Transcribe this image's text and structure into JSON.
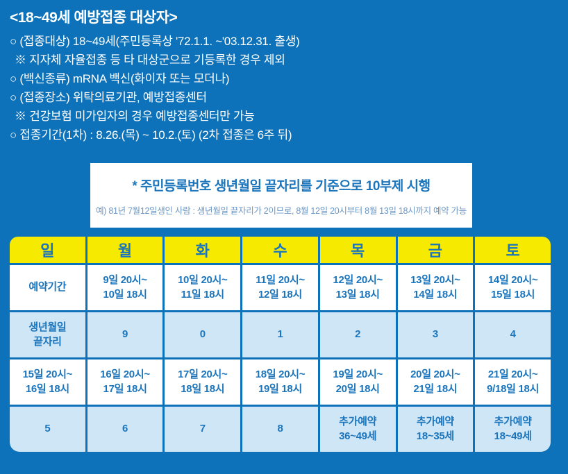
{
  "colors": {
    "background": "#0d72b9",
    "header-yellow": "#f6ea00",
    "cell-light-blue": "#cfe6f7",
    "cell-white": "#ffffff",
    "text-blue": "#1b75bc",
    "text-dark": "#2c5f7e",
    "text-red": "#e8312b",
    "text-white": "#ffffff",
    "notice-subtitle-blue": "#6b97c5"
  },
  "header_section": {
    "title": "<18~49세 예방접종 대상자>",
    "lines": [
      "○ (접종대상) 18~49세(주민등록상 '72.1.1. ~'03.12.31. 출생)",
      "※ 지자체 자율접종 등 타 대상군으로 기등록한 경우 제외",
      "○ (백신종류) mRNA 백신(화이자 또는 모더나)",
      "○ (접종장소) 위탁의료기관, 예방접종센터",
      "※ 건강보험 미가입자의 경우 예방접종센터만 가능",
      "○ 접종기간(1차) : 8.26.(목) ~ 10.2.(토) (2차 접종은 6주 뒤)"
    ]
  },
  "notice_box": {
    "title": "* 주민등록번호 생년월일 끝자리를 기준으로 10부제 시행",
    "subtitle": "예) 81년 7월12일생인 사람 : 생년월일 끝자리가 2이므로, 8월 12일 20시부터 8월 13일 18시까지 예약 가능"
  },
  "schedule_table": {
    "day_headers": [
      "일",
      "월",
      "화",
      "수",
      "목",
      "금",
      "토"
    ],
    "rows": [
      {
        "cells": [
          "예약기간",
          "9일 20시~\n10일 18시",
          "10일 20시~\n11일 18시",
          "11일 20시~\n12일 18시",
          "12일 20시~\n13일 18시",
          "13일 20시~\n14일 18시",
          "14일 20시~\n15일 18시"
        ]
      },
      {
        "cells": [
          "생년월일\n끝자리",
          "9",
          "0",
          "1",
          "2",
          "3",
          "4"
        ]
      },
      {
        "cells": [
          "15일 20시~\n16일 18시",
          "16일 20시~\n17일 18시",
          "17일 20시~\n18일 18시",
          "18일 20시~\n19일 18시",
          "19일 20시~\n20일 18시",
          "20일 20시~\n21일 18시",
          "21일 20시~\n9/18일 18시"
        ]
      },
      {
        "cells": [
          "5",
          "6",
          "7",
          "8",
          "추가예약\n36~49세",
          "추가예약\n18~35세",
          "추가예약\n18~49세"
        ]
      }
    ]
  }
}
